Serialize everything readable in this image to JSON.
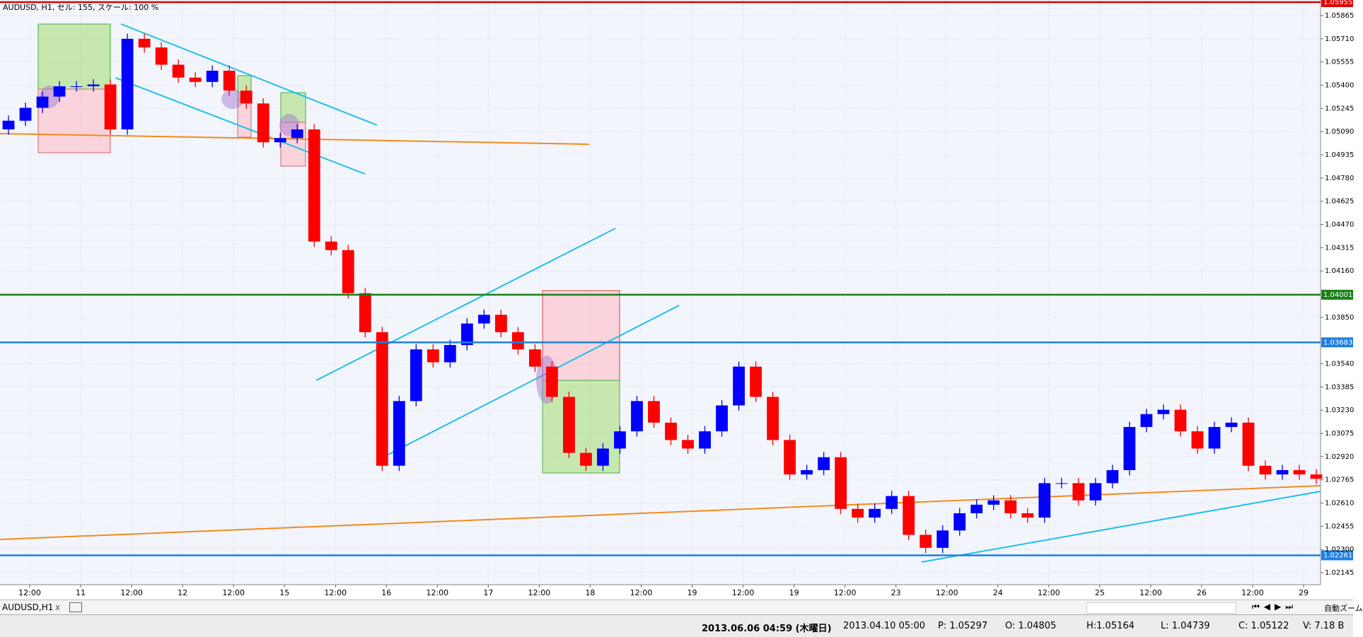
{
  "chart_data": {
    "type": "candlestick",
    "title": "AUDUSD, H1, セル: 155, スケール: 100 %",
    "x": [
      2,
      6,
      10,
      14,
      18,
      22,
      26,
      30,
      34,
      38,
      42,
      46,
      50,
      54,
      58,
      62,
      66,
      70,
      74,
      78,
      82,
      86,
      90,
      94,
      98,
      102,
      106,
      110,
      114,
      118,
      122,
      126,
      130,
      134,
      138,
      142,
      146,
      150,
      154,
      158,
      162,
      166,
      170,
      174,
      178,
      182,
      186,
      190,
      194,
      198,
      202,
      206,
      210,
      214,
      218,
      222,
      226,
      230,
      234,
      238,
      242,
      246,
      250,
      254,
      258,
      262,
      266,
      270,
      274,
      278,
      282,
      286,
      290,
      294,
      298,
      302,
      306,
      310
    ],
    "open": [
      1.05105,
      1.05163,
      1.05249,
      1.05324,
      1.05393,
      1.05393,
      1.05405,
      1.05105,
      1.0571,
      1.05652,
      1.05537,
      1.05451,
      1.05422,
      1.05497,
      1.05364,
      1.05278,
      1.05019,
      1.05047,
      1.05105,
      1.04356,
      1.04299,
      1.04011,
      1.03751,
      1.02859,
      1.03291,
      1.03636,
      1.0355,
      1.03665,
      1.03809,
      1.03867,
      1.03751,
      1.03636,
      1.03521,
      1.03319,
      1.02945,
      1.02859,
      1.02974,
      1.03089,
      1.03291,
      1.03147,
      1.03031,
      1.02974,
      1.03089,
      1.03262,
      1.03521,
      1.03319,
      1.03031,
      1.02801,
      1.0283,
      1.02916,
      1.02571,
      1.02513,
      1.02571,
      1.02657,
      1.02398,
      1.02311,
      1.02427,
      1.02542,
      1.02599,
      1.02628,
      1.02542,
      1.02513,
      1.02743,
      1.02743,
      1.02628,
      1.02743,
      1.0283,
      1.03118,
      1.03204,
      1.03233,
      1.03089,
      1.02974,
      1.03118,
      1.03147,
      1.02859,
      1.02801,
      1.0283,
      1.02801
    ],
    "close": [
      1.05163,
      1.05249,
      1.05324,
      1.05393,
      1.05393,
      1.05405,
      1.05105,
      1.0571,
      1.05652,
      1.05537,
      1.05451,
      1.05422,
      1.05497,
      1.05364,
      1.05278,
      1.05019,
      1.05047,
      1.05105,
      1.04356,
      1.04299,
      1.04011,
      1.03751,
      1.02859,
      1.03291,
      1.03636,
      1.0355,
      1.03665,
      1.03809,
      1.03867,
      1.03751,
      1.03636,
      1.03521,
      1.03319,
      1.02945,
      1.02859,
      1.02974,
      1.03089,
      1.03291,
      1.03147,
      1.03031,
      1.02974,
      1.03089,
      1.03262,
      1.03521,
      1.03319,
      1.03031,
      1.02801,
      1.0283,
      1.02916,
      1.02571,
      1.02513,
      1.02571,
      1.02657,
      1.02398,
      1.02311,
      1.02427,
      1.02542,
      1.02599,
      1.02628,
      1.02542,
      1.02513,
      1.02743,
      1.02743,
      1.02628,
      1.02743,
      1.0283,
      1.03118,
      1.03204,
      1.03233,
      1.03089,
      1.02974,
      1.03118,
      1.03147,
      1.02859,
      1.02801,
      1.0283,
      1.02801,
      1.02772
    ],
    "high": [
      1.05198,
      1.05284,
      1.05359,
      1.05428,
      1.05428,
      1.0544,
      1.0544,
      1.05745,
      1.05745,
      1.05687,
      1.05572,
      1.05486,
      1.05532,
      1.05532,
      1.05399,
      1.05313,
      1.05082,
      1.0514,
      1.0514,
      1.04391,
      1.04334,
      1.04046,
      1.03786,
      1.03326,
      1.03671,
      1.03671,
      1.037,
      1.03844,
      1.03902,
      1.03902,
      1.03786,
      1.03671,
      1.03556,
      1.03354,
      1.0298,
      1.03009,
      1.03124,
      1.03326,
      1.03326,
      1.03182,
      1.03066,
      1.03124,
      1.03297,
      1.03556,
      1.03556,
      1.03354,
      1.03066,
      1.02865,
      1.02951,
      1.02951,
      1.02606,
      1.02606,
      1.02692,
      1.02692,
      1.02433,
      1.02462,
      1.02577,
      1.02634,
      1.02663,
      1.02663,
      1.02577,
      1.02778,
      1.02778,
      1.02778,
      1.02778,
      1.02865,
      1.03153,
      1.03239,
      1.03268,
      1.03268,
      1.03124,
      1.03153,
      1.03182,
      1.03182,
      1.02894,
      1.02865,
      1.02865,
      1.02836
    ],
    "low": [
      1.0507,
      1.05128,
      1.05214,
      1.05289,
      1.05358,
      1.05358,
      1.0507,
      1.0507,
      1.05617,
      1.05502,
      1.05416,
      1.05387,
      1.05387,
      1.05329,
      1.05243,
      1.04984,
      1.04984,
      1.05012,
      1.04321,
      1.04264,
      1.03976,
      1.03716,
      1.02824,
      1.02824,
      1.03256,
      1.03515,
      1.03515,
      1.0363,
      1.03774,
      1.03716,
      1.03601,
      1.03486,
      1.03284,
      1.0291,
      1.02824,
      1.02824,
      1.02939,
      1.03054,
      1.03112,
      1.02996,
      1.02939,
      1.02939,
      1.03054,
      1.03227,
      1.03284,
      1.02996,
      1.02766,
      1.02766,
      1.02795,
      1.02536,
      1.02478,
      1.02478,
      1.02536,
      1.02363,
      1.02276,
      1.02276,
      1.02392,
      1.02507,
      1.02564,
      1.02507,
      1.02478,
      1.02478,
      1.02708,
      1.02593,
      1.02593,
      1.02708,
      1.02795,
      1.03083,
      1.03169,
      1.03054,
      1.02939,
      1.02939,
      1.03083,
      1.02824,
      1.02766,
      1.02766,
      1.02766,
      1.02737
    ],
    "up_color": "#0000ff",
    "down_color": "#ff0000",
    "xlim": [
      0,
      311
    ],
    "ylim": [
      1.02065,
      1.05969
    ],
    "xticks": [
      {
        "value": 7,
        "label": "12:00"
      },
      {
        "value": 19,
        "label": "11"
      },
      {
        "value": 31,
        "label": "12:00"
      },
      {
        "value": 43,
        "label": "12"
      },
      {
        "value": 55,
        "label": "12:00"
      },
      {
        "value": 67,
        "label": "15"
      },
      {
        "value": 79,
        "label": "12:00"
      },
      {
        "value": 91,
        "label": "16"
      },
      {
        "value": 103,
        "label": "12:00"
      },
      {
        "value": 115,
        "label": "17"
      },
      {
        "value": 127,
        "label": "12:00"
      },
      {
        "value": 139,
        "label": "18"
      },
      {
        "value": 151,
        "label": "12:00"
      },
      {
        "value": 163,
        "label": "19"
      },
      {
        "value": 175,
        "label": "12:00"
      },
      {
        "value": 187,
        "label": "19"
      },
      {
        "value": 199,
        "label": "12:00"
      },
      {
        "value": 211,
        "label": "23"
      },
      {
        "value": 223,
        "label": "12:00"
      },
      {
        "value": 235,
        "label": "24"
      },
      {
        "value": 247,
        "label": "12:00"
      },
      {
        "value": 259,
        "label": "25"
      },
      {
        "value": 271,
        "label": "12:00"
      },
      {
        "value": 283,
        "label": "26"
      },
      {
        "value": 295,
        "label": "12:00"
      },
      {
        "value": 307,
        "label": "29"
      }
    ],
    "yticks": [
      1.05865,
      {
        "value": 1.0571,
        "label": "1.05710"
      },
      1.05555,
      {
        "value": 1.054,
        "label": "1.05400"
      },
      1.05245,
      {
        "value": 1.0509,
        "label": "1.05090"
      },
      1.04935,
      {
        "value": 1.0478,
        "label": "1.04780"
      },
      1.04625,
      {
        "value": 1.0447,
        "label": "1.04470"
      },
      1.04315,
      {
        "value": 1.0416,
        "label": "1.04160"
      },
      {
        "value": 1.0385,
        "label": "1.03850"
      },
      {
        "value": 1.0354,
        "label": "1.03540"
      },
      1.03385,
      {
        "value": 1.0323,
        "label": "1.03230"
      },
      1.03075,
      {
        "value": 1.0292,
        "label": "1.02920"
      },
      1.02765,
      {
        "value": 1.0261,
        "label": "1.02610"
      },
      1.02455,
      {
        "value": 1.023,
        "label": "1.02300"
      },
      1.02145
    ],
    "grid": true,
    "levels": [
      {
        "value": 1.05955,
        "color": "#e00000"
      },
      {
        "value": 1.04001,
        "color": "#1a7f1a"
      },
      {
        "value": 1.03683,
        "color": "#1e7fe0"
      },
      {
        "value": 1.02261,
        "color": "#1e7fe0"
      }
    ]
  },
  "tab": {
    "label": "AUDUSD,H1",
    "close": "x"
  },
  "status_bar": {
    "time": "2013.06.06 04:59 (木曜日)",
    "bar_time": "2013.04.10 05:00",
    "p": "P: 1.05297",
    "o": "O: 1.04805",
    "h": "H:1.05164",
    "l": "L: 1.04739",
    "c": "C: 1.05122",
    "v": "V: 7.18 B"
  },
  "toolbar": {
    "zoom": "自動ズーム"
  }
}
